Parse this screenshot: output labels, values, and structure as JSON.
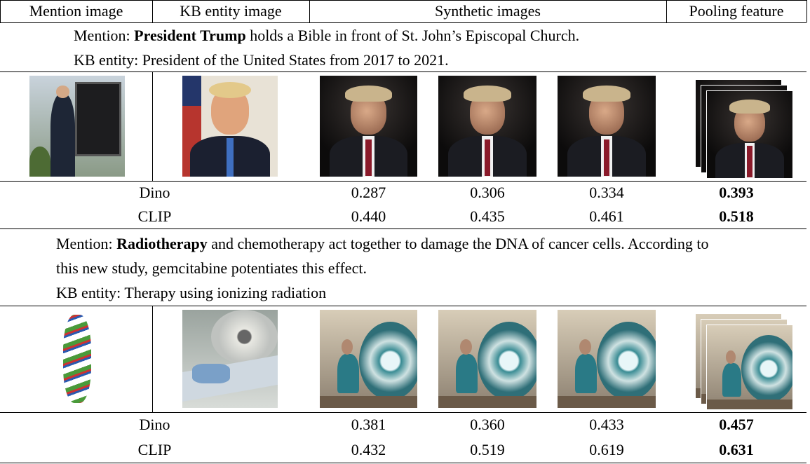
{
  "header": {
    "columns": [
      "Mention image",
      "KB entity image",
      "Synthetic images",
      "Pooling feature"
    ]
  },
  "sections": [
    {
      "mention_label": "Mention:",
      "mention_entity": "President Trump",
      "mention_text": "holds a Bible in front of St. John’s Episcopal Church.",
      "kb_label": "KB entity:",
      "kb_text": "President of the United States from 2017 to 2021.",
      "scores": [
        {
          "model": "Dino",
          "values": [
            "0.287",
            "0.306",
            "0.334",
            "0.393"
          ]
        },
        {
          "model": "CLIP",
          "values": [
            "0.440",
            "0.435",
            "0.461",
            "0.518"
          ]
        }
      ]
    },
    {
      "mention_label": "Mention:",
      "mention_entity": "Radiotherapy",
      "mention_text": "and chemotherapy act together to damage the DNA of cancer cells. According to this new study, gemcitabine potentiates this effect.",
      "kb_label": "KB entity:",
      "kb_text": "Therapy using ionizing radiation",
      "scores": [
        {
          "model": "Dino",
          "values": [
            "0.381",
            "0.360",
            "0.433",
            "0.457"
          ]
        },
        {
          "model": "CLIP",
          "values": [
            "0.432",
            "0.519",
            "0.619",
            "0.631"
          ]
        }
      ]
    }
  ]
}
